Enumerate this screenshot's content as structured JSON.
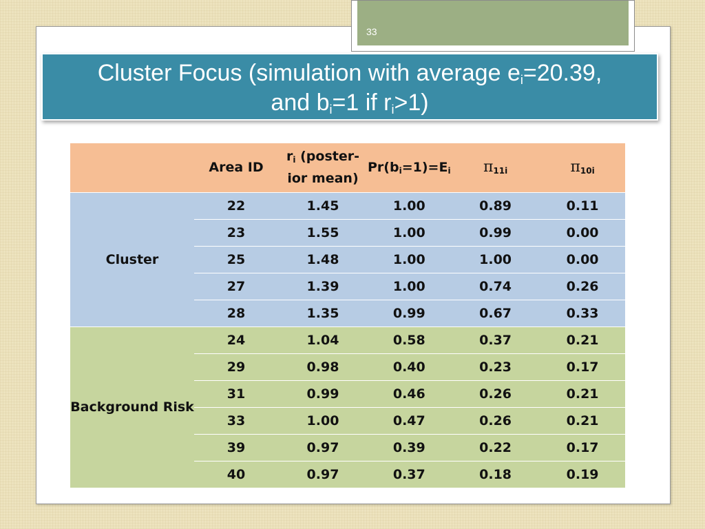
{
  "slide": {
    "page_number": "33",
    "title": {
      "line1_prefix": "Cluster Focus (simulation with average e",
      "line1_sub": "i",
      "line1_suffix": "=20.39,",
      "line2_prefix": "and b",
      "line2_sub1": "i",
      "line2_mid": "=1 if r",
      "line2_sub2": "i",
      "line2_suffix": ">1)"
    }
  },
  "table": {
    "headers": {
      "group": "",
      "area_id": "Area ID",
      "r_main": "r",
      "r_sub": "i",
      "r_line1": " (poster-",
      "r_line2": "ior mean)",
      "pr_a": "Pr(b",
      "pr_sub1": "i",
      "pr_b": "=1)=E",
      "pr_sub2": "i",
      "pi11_symbol": "π",
      "pi11_sub": "11i",
      "pi10_symbol": "π",
      "pi10_sub": "10i"
    },
    "groups": [
      {
        "label": "Cluster",
        "rows": [
          {
            "area_id": "22",
            "r": "1.45",
            "pr": "1.00",
            "pi11": "0.89",
            "pi10": "0.11"
          },
          {
            "area_id": "23",
            "r": "1.55",
            "pr": "1.00",
            "pi11": "0.99",
            "pi10": "0.00"
          },
          {
            "area_id": "25",
            "r": "1.48",
            "pr": "1.00",
            "pi11": "1.00",
            "pi10": "0.00"
          },
          {
            "area_id": "27",
            "r": "1.39",
            "pr": "1.00",
            "pi11": "0.74",
            "pi10": "0.26"
          },
          {
            "area_id": "28",
            "r": "1.35",
            "pr": "0.99",
            "pi11": "0.67",
            "pi10": "0.33"
          }
        ]
      },
      {
        "label": "Background Risk",
        "rows": [
          {
            "area_id": "24",
            "r": "1.04",
            "pr": "0.58",
            "pi11": "0.37",
            "pi10": "0.21"
          },
          {
            "area_id": "29",
            "r": "0.98",
            "pr": "0.40",
            "pi11": "0.23",
            "pi10": "0.17"
          },
          {
            "area_id": "31",
            "r": "0.99",
            "pr": "0.46",
            "pi11": "0.26",
            "pi10": "0.21"
          },
          {
            "area_id": "33",
            "r": "1.00",
            "pr": "0.47",
            "pi11": "0.26",
            "pi10": "0.21"
          },
          {
            "area_id": "39",
            "r": "0.97",
            "pr": "0.39",
            "pi11": "0.22",
            "pi10": "0.17"
          },
          {
            "area_id": "40",
            "r": "0.97",
            "pr": "0.37",
            "pi11": "0.18",
            "pi10": "0.19"
          }
        ]
      }
    ]
  }
}
